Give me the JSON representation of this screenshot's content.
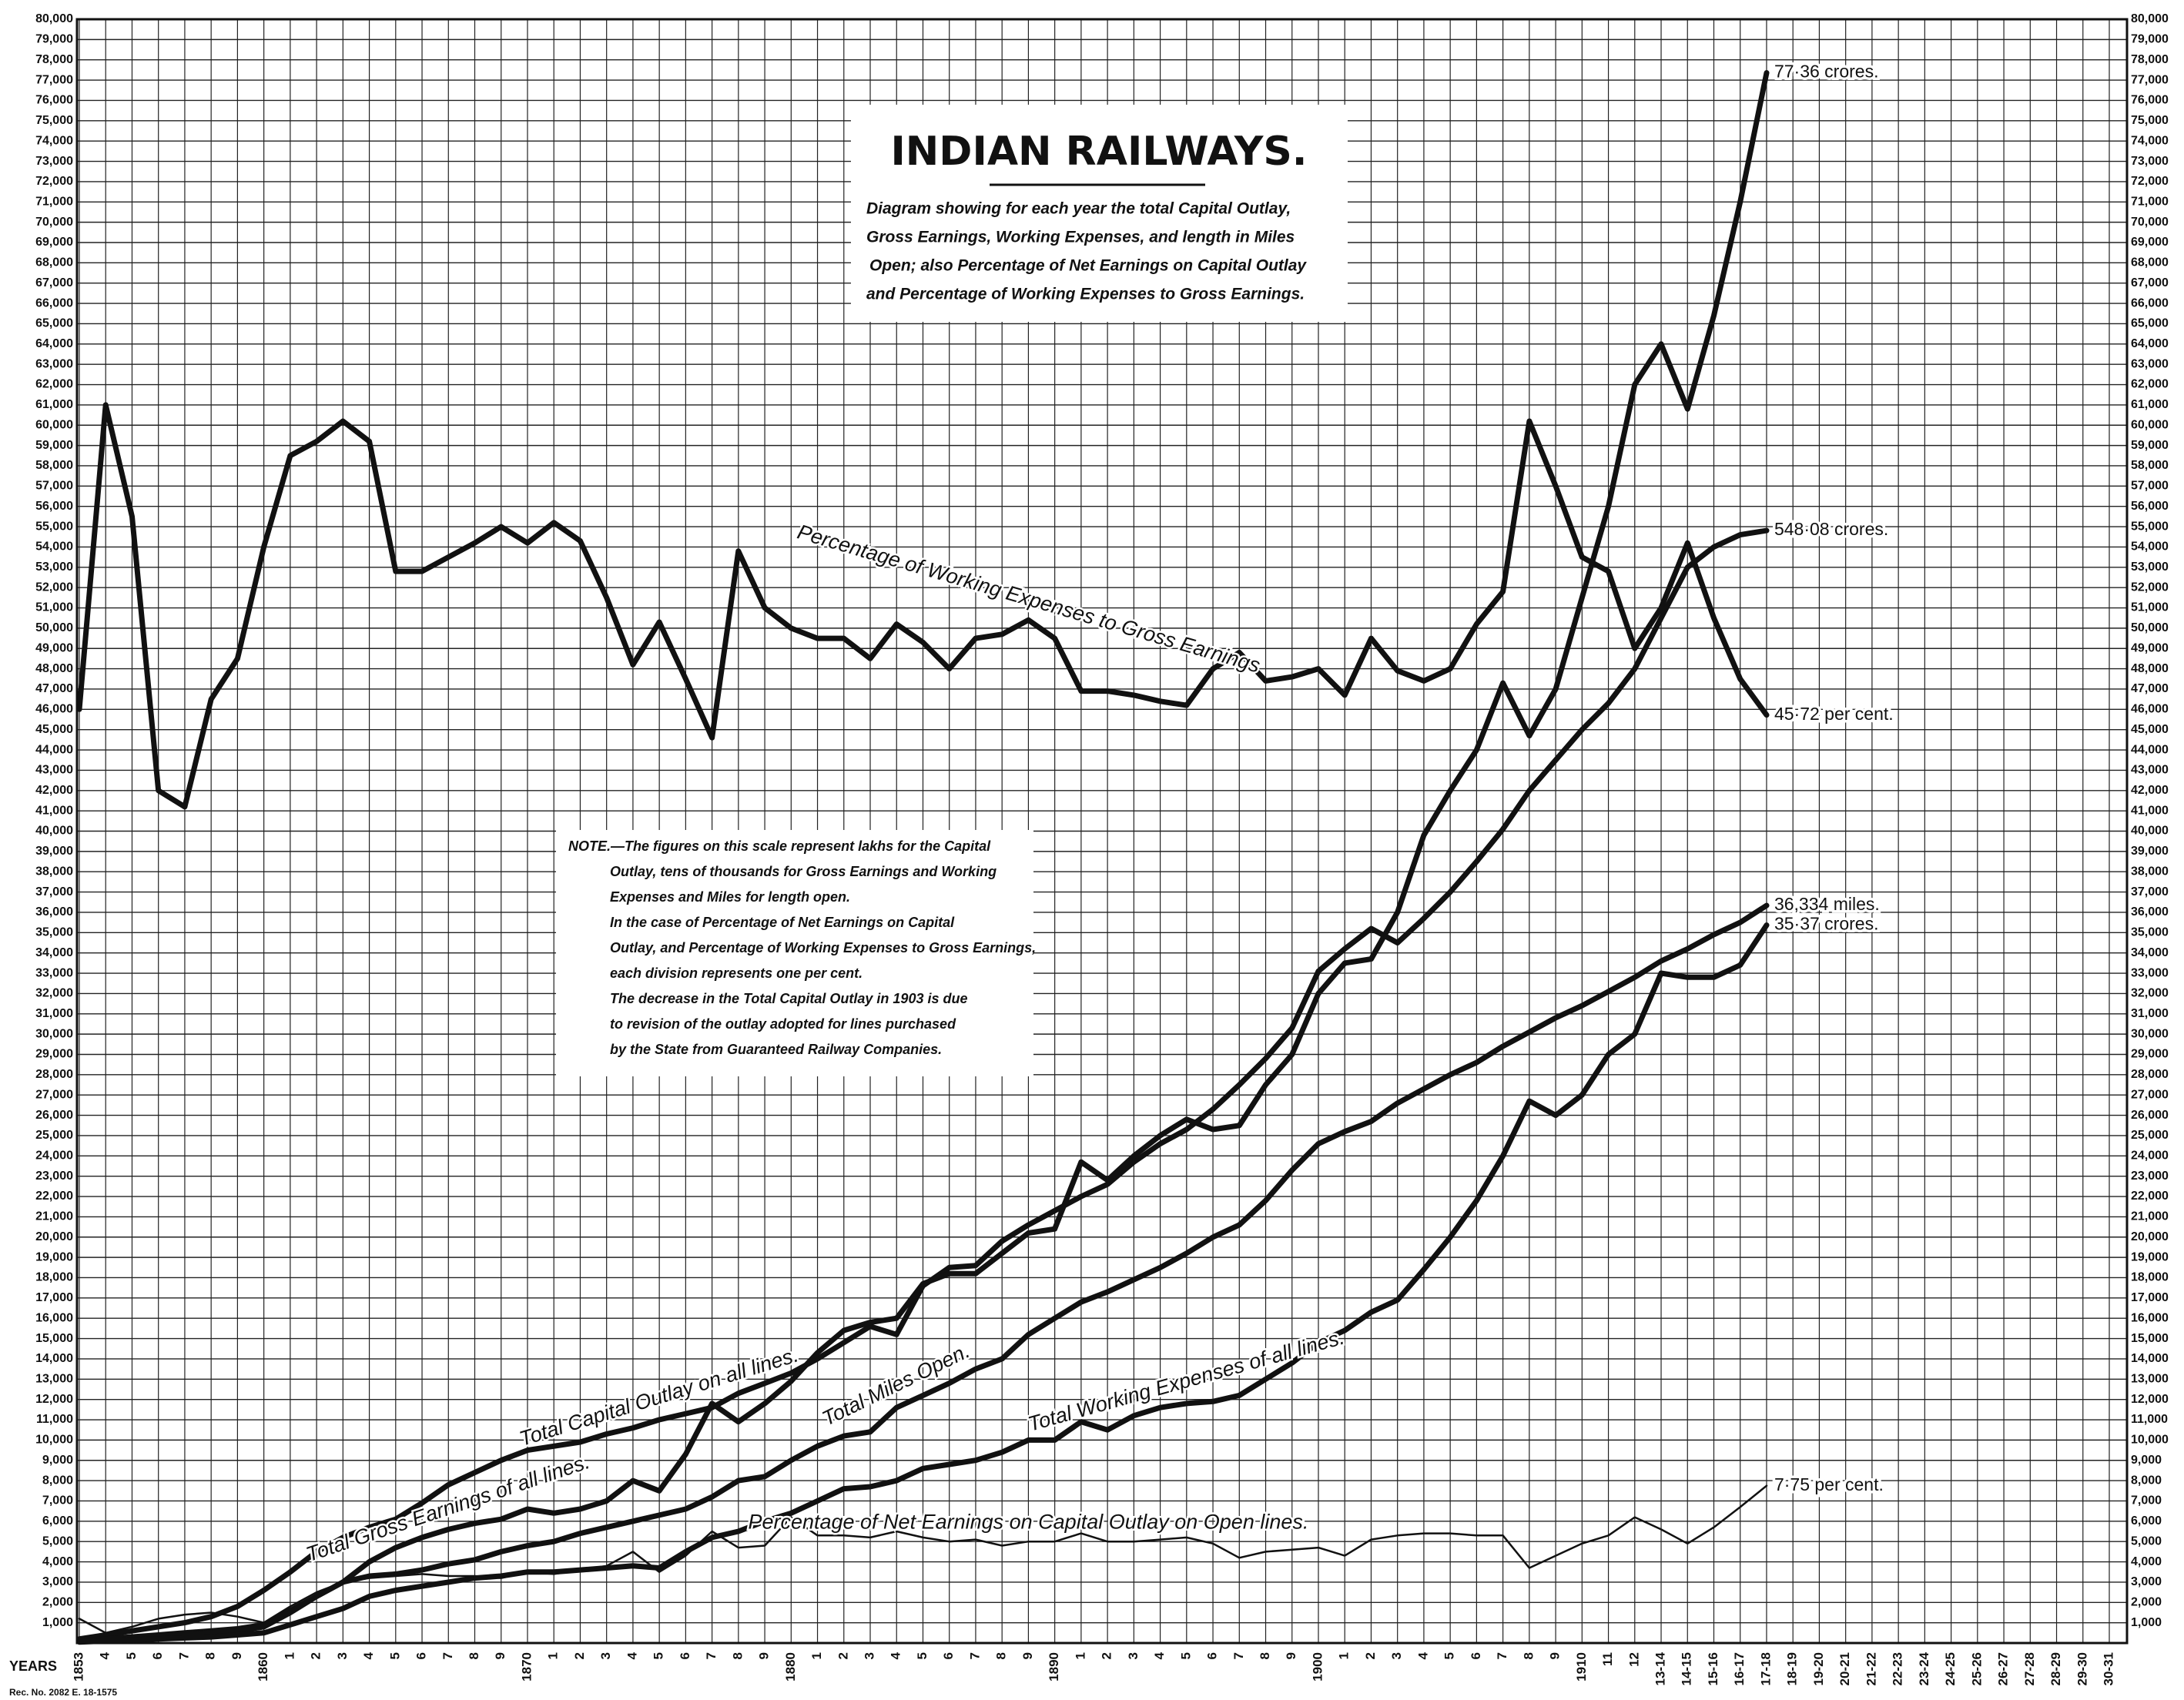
{
  "chart_data": {
    "type": "line",
    "title": "INDIAN RAILWAYS.",
    "subtitle": [
      "Diagram showing for each year the total Capital Outlay,",
      "Gross Earnings, Working Expenses, and length in Miles",
      "Open; also Percentage of Net Earnings on Capital Outlay",
      "and Percentage of Working Expenses to Gross Earnings."
    ],
    "note": [
      "NOTE.—The figures on this scale represent lakhs for the Capital",
      "Outlay, tens of thousands for Gross Earnings and Working",
      "Expenses and Miles for length open.",
      "In the case of Percentage of Net Earnings on Capital",
      "Outlay, and Percentage of Working Expenses to Gross Earnings,",
      "each division represents one per cent.",
      "The decrease in the Total Capital Outlay in 1903 is due",
      "to revision of the outlay adopted for lines purchased",
      "by the State from Guaranteed Railway Companies."
    ],
    "x_label": "YEARS",
    "footer": "Rec. No. 2082 E. 18-1575",
    "grid": true,
    "categories": [
      "1853",
      "4",
      "5",
      "6",
      "7",
      "8",
      "9",
      "1860",
      "1",
      "2",
      "3",
      "4",
      "5",
      "6",
      "7",
      "8",
      "9",
      "1870",
      "1",
      "2",
      "3",
      "4",
      "5",
      "6",
      "7",
      "8",
      "9",
      "1880",
      "1",
      "2",
      "3",
      "4",
      "5",
      "6",
      "7",
      "8",
      "9",
      "1890",
      "1",
      "2",
      "3",
      "4",
      "5",
      "6",
      "7",
      "8",
      "9",
      "1900",
      "1",
      "2",
      "3",
      "4",
      "5",
      "6",
      "7",
      "8",
      "9",
      "1910",
      "11",
      "12",
      "13-14",
      "14-15",
      "15-16",
      "16-17",
      "17-18",
      "18-19",
      "19-20",
      "20-21",
      "21-22",
      "22-23",
      "23-24",
      "24-25",
      "25-26",
      "26-27",
      "27-28",
      "28-29",
      "29-30",
      "30-31"
    ],
    "series": [
      {
        "name": "Percentage of Working Expenses to Gross Earnings",
        "color": "#111111",
        "weight": "heavy",
        "end_label": "45·72 per cent.",
        "values": [
          46000,
          61000,
          55500,
          42000,
          41200,
          46500,
          48500,
          54000,
          58500,
          59200,
          60200,
          59200,
          52800,
          52800,
          53500,
          54200,
          55000,
          54200,
          55200,
          54300,
          51500,
          48200,
          50300,
          47500,
          44600,
          53800,
          51000,
          50000,
          49500,
          49500,
          48500,
          50200,
          49300,
          48000,
          49500,
          49700,
          50400,
          49500,
          46900,
          46900,
          46700,
          46400,
          46200,
          48000,
          48800,
          47400,
          47600,
          48000,
          46700,
          49500,
          47900,
          47400,
          48000,
          50200,
          51800,
          60200,
          57000,
          53500,
          52800,
          49000,
          51000,
          54200,
          50500,
          47500,
          45720,
          null,
          null,
          null,
          null,
          null,
          null,
          null,
          null,
          null,
          null,
          null,
          null,
          null
        ]
      },
      {
        "name": "Total Capital Outlay on all lines.",
        "color": "#111111",
        "weight": "heavy",
        "end_label": "548·08 crores.",
        "values": [
          200,
          400,
          600,
          800,
          1000,
          1300,
          1800,
          2600,
          3500,
          4500,
          5200,
          5700,
          6100,
          6900,
          7800,
          8400,
          9000,
          9500,
          9700,
          9900,
          10300,
          10600,
          11000,
          11300,
          11600,
          12300,
          12800,
          13300,
          14000,
          14800,
          15600,
          15200,
          17600,
          18500,
          18600,
          19800,
          20600,
          21300,
          22000,
          22600,
          23700,
          24600,
          25300,
          26300,
          27500,
          28800,
          30300,
          33100,
          34200,
          35200,
          34500,
          35700,
          37000,
          38500,
          40100,
          42000,
          43500,
          45000,
          46300,
          48000,
          50500,
          53000,
          54000,
          54600,
          54808,
          null,
          null,
          null,
          null,
          null,
          null,
          null,
          null,
          null,
          null,
          null,
          null,
          null
        ]
      },
      {
        "name": "Total Gross Earnings of all lines.",
        "color": "#111111",
        "weight": "heavy",
        "end_label": "77·36 crores.",
        "values": [
          100,
          200,
          300,
          400,
          500,
          600,
          700,
          900,
          1600,
          2300,
          3000,
          4000,
          4700,
          5200,
          5600,
          5900,
          6100,
          6600,
          6400,
          6600,
          7000,
          8000,
          7500,
          9300,
          11800,
          10900,
          11800,
          12900,
          14300,
          15400,
          15800,
          16000,
          17700,
          18200,
          18200,
          19200,
          20200,
          20400,
          23700,
          22800,
          24000,
          25000,
          25800,
          25300,
          25500,
          27500,
          29000,
          32000,
          33500,
          33700,
          36000,
          39800,
          42000,
          44000,
          47300,
          44700,
          47000,
          51500,
          56000,
          62000,
          64000,
          60800,
          65400,
          71000,
          77360,
          null,
          null,
          null,
          null,
          null,
          null,
          null,
          null,
          null,
          null,
          null,
          null,
          null
        ]
      },
      {
        "name": "Total Miles Open.",
        "color": "#111111",
        "weight": "heavy",
        "end_label": "36,334 miles.",
        "values": [
          100,
          200,
          300,
          350,
          400,
          500,
          600,
          800,
          1500,
          2300,
          3000,
          3300,
          3400,
          3600,
          3900,
          4100,
          4500,
          4800,
          5000,
          5400,
          5700,
          6000,
          6300,
          6600,
          7200,
          8000,
          8200,
          9000,
          9700,
          10200,
          10400,
          11600,
          12200,
          12800,
          13500,
          14000,
          15200,
          16000,
          16800,
          17300,
          17900,
          18500,
          19200,
          20000,
          20600,
          21800,
          23300,
          24600,
          25200,
          25700,
          26600,
          27300,
          28000,
          28600,
          29400,
          30100,
          30800,
          31400,
          32100,
          32800,
          33600,
          34200,
          34900,
          35500,
          36334,
          null,
          null,
          null,
          null,
          null,
          null,
          null,
          null,
          null,
          null,
          null,
          null,
          null
        ]
      },
      {
        "name": "Total Working Expenses of all lines.",
        "color": "#111111",
        "weight": "heavy",
        "end_label": "35·37 crores.",
        "values": [
          50,
          100,
          150,
          200,
          250,
          300,
          400,
          500,
          900,
          1300,
          1700,
          2300,
          2600,
          2800,
          3000,
          3200,
          3300,
          3500,
          3500,
          3600,
          3700,
          3800,
          3700,
          4500,
          5200,
          5500,
          6000,
          6400,
          7000,
          7600,
          7700,
          8000,
          8600,
          8800,
          9000,
          9400,
          10000,
          10000,
          10900,
          10500,
          11200,
          11600,
          11800,
          11900,
          12200,
          13000,
          13800,
          14800,
          15400,
          16300,
          16900,
          18400,
          20000,
          21800,
          24000,
          26700,
          26000,
          27000,
          29000,
          30000,
          33000,
          32800,
          32800,
          33400,
          35370,
          null,
          null,
          null,
          null,
          null,
          null,
          null,
          null,
          null,
          null,
          null,
          null,
          null
        ]
      },
      {
        "name": "Percentage of Net Earnings on Capital Outlay on Open lines.",
        "color": "#111111",
        "weight": "light",
        "end_label": "7·75 per cent.",
        "values": [
          1200,
          500,
          800,
          1200,
          1400,
          1500,
          1300,
          1000,
          1800,
          2500,
          3000,
          3200,
          3300,
          3400,
          3300,
          3300,
          3200,
          3500,
          3400,
          3600,
          3800,
          4500,
          3500,
          4300,
          5500,
          4700,
          4800,
          6200,
          5300,
          5300,
          5200,
          5500,
          5200,
          5000,
          5100,
          4800,
          5000,
          5000,
          5400,
          5000,
          5000,
          5100,
          5200,
          4900,
          4200,
          4500,
          4600,
          4700,
          4300,
          5100,
          5300,
          5400,
          5400,
          5300,
          5300,
          3700,
          4300,
          4900,
          5300,
          6200,
          5600,
          4900,
          5700,
          6700,
          7750,
          null,
          null,
          null,
          null,
          null,
          null,
          null,
          null,
          null,
          null,
          null,
          null,
          null
        ]
      }
    ],
    "ylim": [
      0,
      80000
    ],
    "yticks": [
      {
        "value": 1000,
        "label": "1,000"
      },
      {
        "value": 2000,
        "label": "2,000"
      },
      {
        "value": 3000,
        "label": "3,000"
      },
      {
        "value": 4000,
        "label": "4,000"
      },
      {
        "value": 5000,
        "label": "5,000"
      },
      {
        "value": 6000,
        "label": "6,000"
      },
      {
        "value": 7000,
        "label": "7,000"
      },
      {
        "value": 8000,
        "label": "8,000"
      },
      {
        "value": 9000,
        "label": "9,000"
      },
      {
        "value": 10000,
        "label": "10,000"
      },
      {
        "value": 11000,
        "label": "11,000"
      },
      {
        "value": 12000,
        "label": "12,000"
      },
      {
        "value": 13000,
        "label": "13,000"
      },
      {
        "value": 14000,
        "label": "14,000"
      },
      {
        "value": 15000,
        "label": "15,000"
      },
      {
        "value": 16000,
        "label": "16,000"
      },
      {
        "value": 17000,
        "label": "17,000"
      },
      {
        "value": 18000,
        "label": "18,000"
      },
      {
        "value": 19000,
        "label": "19,000"
      },
      {
        "value": 20000,
        "label": "20,000"
      },
      {
        "value": 21000,
        "label": "21,000"
      },
      {
        "value": 22000,
        "label": "22,000"
      },
      {
        "value": 23000,
        "label": "23,000"
      },
      {
        "value": 24000,
        "label": "24,000"
      },
      {
        "value": 25000,
        "label": "25,000"
      },
      {
        "value": 26000,
        "label": "26,000"
      },
      {
        "value": 27000,
        "label": "27,000"
      },
      {
        "value": 28000,
        "label": "28,000"
      },
      {
        "value": 29000,
        "label": "29,000"
      },
      {
        "value": 30000,
        "label": "30,000"
      },
      {
        "value": 31000,
        "label": "31,000"
      },
      {
        "value": 32000,
        "label": "32,000"
      },
      {
        "value": 33000,
        "label": "33,000"
      },
      {
        "value": 34000,
        "label": "34,000"
      },
      {
        "value": 35000,
        "label": "35,000"
      },
      {
        "value": 36000,
        "label": "36,000"
      },
      {
        "value": 37000,
        "label": "37,000"
      },
      {
        "value": 38000,
        "label": "38,000"
      },
      {
        "value": 39000,
        "label": "39,000"
      },
      {
        "value": 40000,
        "label": "40,000"
      },
      {
        "value": 41000,
        "label": "41,000"
      },
      {
        "value": 42000,
        "label": "42,000"
      },
      {
        "value": 43000,
        "label": "43,000"
      },
      {
        "value": 44000,
        "label": "44,000"
      },
      {
        "value": 45000,
        "label": "45,000"
      },
      {
        "value": 46000,
        "label": "46,000"
      },
      {
        "value": 47000,
        "label": "47,000"
      },
      {
        "value": 48000,
        "label": "48,000"
      },
      {
        "value": 49000,
        "label": "49,000"
      },
      {
        "value": 50000,
        "label": "50,000"
      },
      {
        "value": 51000,
        "label": "51,000"
      },
      {
        "value": 52000,
        "label": "52,000"
      },
      {
        "value": 53000,
        "label": "53,000"
      },
      {
        "value": 54000,
        "label": "54,000"
      },
      {
        "value": 55000,
        "label": "55,000"
      },
      {
        "value": 56000,
        "label": "56,000"
      },
      {
        "value": 57000,
        "label": "57,000"
      },
      {
        "value": 58000,
        "label": "58,000"
      },
      {
        "value": 59000,
        "label": "59,000"
      },
      {
        "value": 60000,
        "label": "60,000"
      },
      {
        "value": 61000,
        "label": "61,000"
      },
      {
        "value": 62000,
        "label": "62,000"
      },
      {
        "value": 63000,
        "label": "63,000"
      },
      {
        "value": 64000,
        "label": "64,000"
      },
      {
        "value": 65000,
        "label": "65,000"
      },
      {
        "value": 66000,
        "label": "66,000"
      },
      {
        "value": 67000,
        "label": "67,000"
      },
      {
        "value": 68000,
        "label": "68,000"
      },
      {
        "value": 69000,
        "label": "69,000"
      },
      {
        "value": 70000,
        "label": "70,000"
      },
      {
        "value": 71000,
        "label": "71,000"
      },
      {
        "value": 72000,
        "label": "72,000"
      },
      {
        "value": 73000,
        "label": "73,000"
      },
      {
        "value": 74000,
        "label": "74,000"
      },
      {
        "value": 75000,
        "label": "75,000"
      },
      {
        "value": 76000,
        "label": "76,000"
      },
      {
        "value": 77000,
        "label": "77,000"
      },
      {
        "value": 78000,
        "label": "78,000"
      },
      {
        "value": 79000,
        "label": "79,000"
      },
      {
        "value": 80000,
        "label": "80,000"
      }
    ]
  }
}
